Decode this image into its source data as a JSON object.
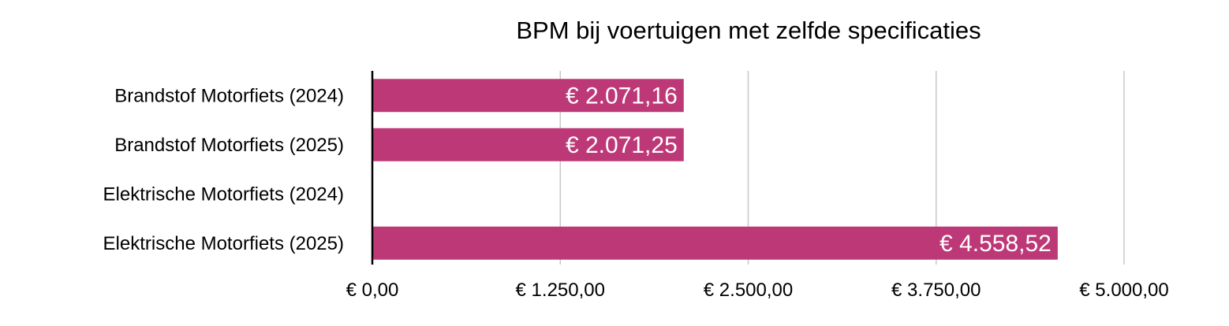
{
  "chart_data": {
    "type": "bar",
    "orientation": "horizontal",
    "title": "BPM bij voertuigen met zelfde specificaties",
    "xlabel": "",
    "ylabel": "",
    "categories": [
      "Brandstof Motorfiets (2024)",
      "Brandstof Motorfiets (2025)",
      "Elektrische Motorfiets (2024)",
      "Elektrische Motorfiets (2025)"
    ],
    "values": [
      2071.16,
      2071.25,
      0,
      4558.52
    ],
    "value_labels": [
      "€ 2.071,16",
      "€ 2.071,25",
      "",
      "€ 4.558,52"
    ],
    "xlim": [
      0,
      5000
    ],
    "x_ticks": [
      0,
      1250,
      2500,
      3750,
      5000
    ],
    "x_tick_labels": [
      "€ 0,00",
      "€ 1.250,00",
      "€ 2.500,00",
      "€ 3.750,00",
      "€ 5.000,00"
    ],
    "grid": "vertical",
    "legend": "none",
    "colors": {
      "bar": "#bd3877",
      "grid": "#c8c8c8",
      "axis": "#000000",
      "label": "#ffffff"
    }
  }
}
